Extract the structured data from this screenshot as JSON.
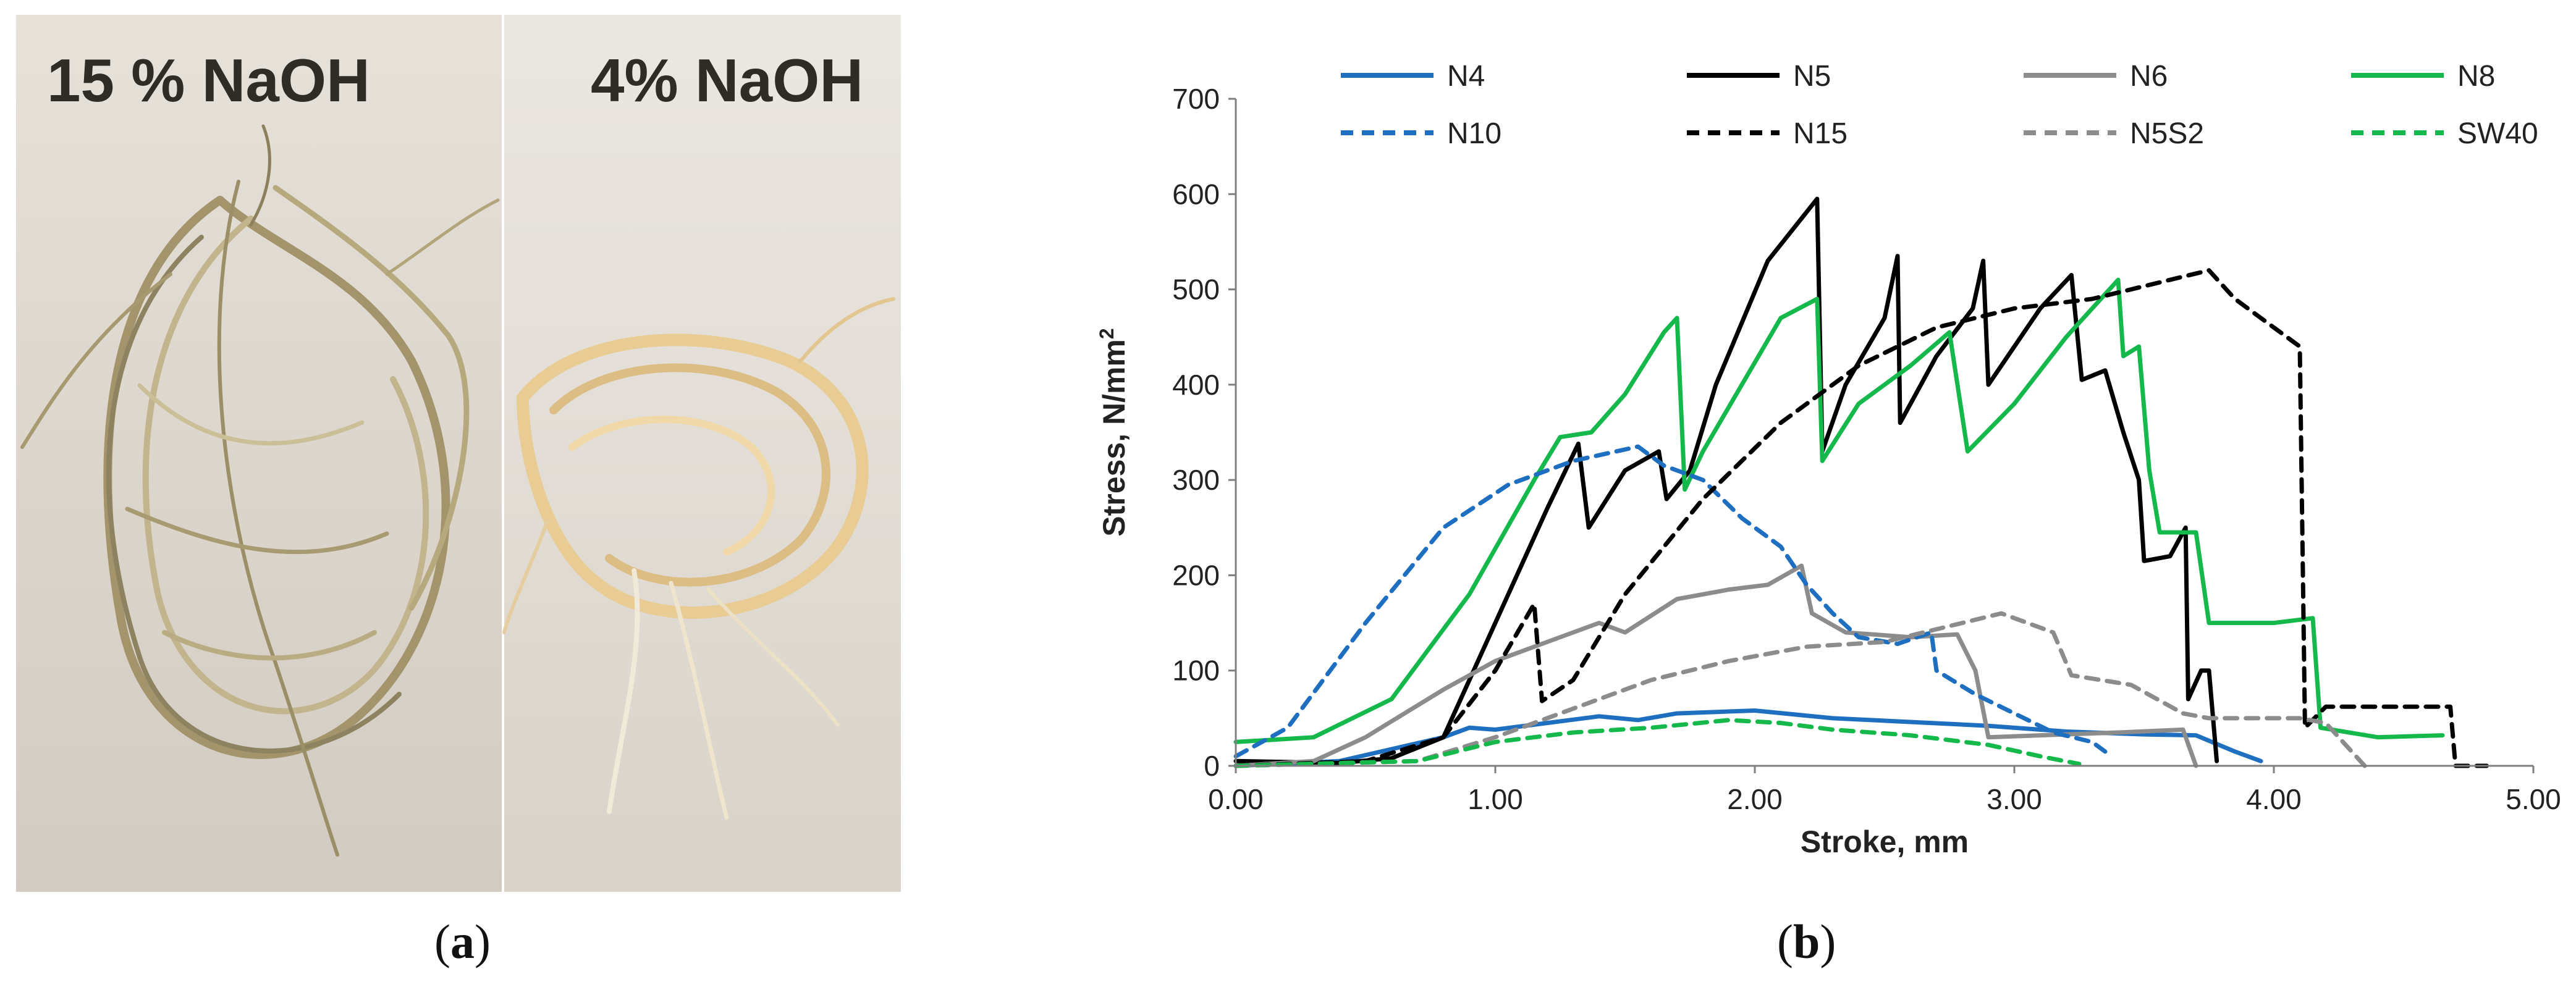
{
  "panel_a": {
    "label_left": "15 % NaOH",
    "label_right": "4% NaOH",
    "caption_prefix": "(",
    "caption_letter": "a",
    "caption_suffix": ")"
  },
  "panel_b": {
    "caption_prefix": "(",
    "caption_letter": "b",
    "caption_suffix": ")"
  },
  "colors": {
    "blue": "#1f6fc0",
    "black": "#000000",
    "gray": "#8c8c8c",
    "green": "#14b84b"
  },
  "chart_data": {
    "type": "line",
    "title": "",
    "xlabel": "Stroke, mm",
    "ylabel": "Stress, N/mm",
    "ylabel_superscript": "2",
    "xlim": [
      0,
      5
    ],
    "ylim": [
      0,
      700
    ],
    "x_ticks": [
      0,
      1,
      2,
      3,
      4,
      5
    ],
    "x_tick_labels": [
      "0.00",
      "1.00",
      "2.00",
      "3.00",
      "4.00",
      "5.00"
    ],
    "y_ticks": [
      0,
      100,
      200,
      300,
      400,
      500,
      600,
      700
    ],
    "y_tick_labels": [
      "0",
      "100",
      "200",
      "300",
      "400",
      "500",
      "600",
      "700"
    ],
    "grid": false,
    "legend": "top",
    "series": [
      {
        "name": "N4",
        "color": "#1f6fc0",
        "dash": false,
        "points": [
          [
            0,
            0
          ],
          [
            0.4,
            5
          ],
          [
            0.8,
            30
          ],
          [
            0.9,
            40
          ],
          [
            1.0,
            38
          ],
          [
            1.2,
            45
          ],
          [
            1.4,
            52
          ],
          [
            1.55,
            48
          ],
          [
            1.7,
            55
          ],
          [
            2.0,
            58
          ],
          [
            2.3,
            50
          ],
          [
            2.6,
            46
          ],
          [
            2.9,
            42
          ],
          [
            3.2,
            36
          ],
          [
            3.5,
            33
          ],
          [
            3.7,
            32
          ],
          [
            3.85,
            15
          ],
          [
            3.95,
            5
          ]
        ]
      },
      {
        "name": "N5",
        "color": "#000000",
        "dash": false,
        "points": [
          [
            0,
            5
          ],
          [
            0.4,
            3
          ],
          [
            0.6,
            8
          ],
          [
            0.8,
            30
          ],
          [
            1.0,
            150
          ],
          [
            1.2,
            270
          ],
          [
            1.32,
            338
          ],
          [
            1.36,
            250
          ],
          [
            1.5,
            310
          ],
          [
            1.63,
            330
          ],
          [
            1.66,
            280
          ],
          [
            1.75,
            310
          ],
          [
            1.85,
            400
          ],
          [
            2.05,
            530
          ],
          [
            2.24,
            595
          ],
          [
            2.26,
            330
          ],
          [
            2.35,
            400
          ],
          [
            2.5,
            470
          ],
          [
            2.55,
            535
          ],
          [
            2.56,
            360
          ],
          [
            2.7,
            430
          ],
          [
            2.84,
            480
          ],
          [
            2.88,
            530
          ],
          [
            2.9,
            400
          ],
          [
            3.0,
            440
          ],
          [
            3.1,
            480
          ],
          [
            3.22,
            515
          ],
          [
            3.26,
            405
          ],
          [
            3.35,
            415
          ],
          [
            3.42,
            350
          ],
          [
            3.48,
            300
          ],
          [
            3.5,
            215
          ],
          [
            3.6,
            220
          ],
          [
            3.66,
            250
          ],
          [
            3.67,
            70
          ],
          [
            3.72,
            100
          ],
          [
            3.75,
            100
          ],
          [
            3.78,
            5
          ]
        ]
      },
      {
        "name": "N6",
        "color": "#8c8c8c",
        "dash": false,
        "points": [
          [
            0,
            0
          ],
          [
            0.3,
            5
          ],
          [
            0.5,
            30
          ],
          [
            0.8,
            80
          ],
          [
            1.0,
            110
          ],
          [
            1.2,
            130
          ],
          [
            1.4,
            150
          ],
          [
            1.5,
            140
          ],
          [
            1.7,
            175
          ],
          [
            1.9,
            185
          ],
          [
            2.05,
            190
          ],
          [
            2.18,
            210
          ],
          [
            2.22,
            160
          ],
          [
            2.35,
            140
          ],
          [
            2.6,
            135
          ],
          [
            2.78,
            138
          ],
          [
            2.85,
            100
          ],
          [
            2.9,
            30
          ],
          [
            3.1,
            32
          ],
          [
            3.4,
            35
          ],
          [
            3.65,
            38
          ],
          [
            3.7,
            0
          ]
        ]
      },
      {
        "name": "N8",
        "color": "#14b84b",
        "dash": false,
        "points": [
          [
            0,
            25
          ],
          [
            0.3,
            30
          ],
          [
            0.6,
            70
          ],
          [
            0.9,
            180
          ],
          [
            1.15,
            300
          ],
          [
            1.25,
            345
          ],
          [
            1.37,
            350
          ],
          [
            1.5,
            390
          ],
          [
            1.65,
            455
          ],
          [
            1.7,
            470
          ],
          [
            1.73,
            290
          ],
          [
            1.8,
            330
          ],
          [
            1.95,
            400
          ],
          [
            2.1,
            470
          ],
          [
            2.24,
            490
          ],
          [
            2.26,
            320
          ],
          [
            2.4,
            380
          ],
          [
            2.6,
            420
          ],
          [
            2.75,
            455
          ],
          [
            2.82,
            330
          ],
          [
            3.0,
            380
          ],
          [
            3.2,
            450
          ],
          [
            3.4,
            510
          ],
          [
            3.42,
            430
          ],
          [
            3.48,
            440
          ],
          [
            3.52,
            310
          ],
          [
            3.56,
            245
          ],
          [
            3.7,
            245
          ],
          [
            3.75,
            150
          ],
          [
            4.0,
            150
          ],
          [
            4.15,
            155
          ],
          [
            4.18,
            40
          ],
          [
            4.4,
            30
          ],
          [
            4.65,
            32
          ]
        ]
      },
      {
        "name": "N10",
        "color": "#1f6fc0",
        "dash": true,
        "points": [
          [
            0,
            10
          ],
          [
            0.2,
            40
          ],
          [
            0.5,
            150
          ],
          [
            0.8,
            250
          ],
          [
            1.05,
            295
          ],
          [
            1.3,
            320
          ],
          [
            1.55,
            335
          ],
          [
            1.65,
            315
          ],
          [
            1.8,
            300
          ],
          [
            1.95,
            260
          ],
          [
            2.1,
            230
          ],
          [
            2.2,
            190
          ],
          [
            2.3,
            160
          ],
          [
            2.4,
            135
          ],
          [
            2.55,
            128
          ],
          [
            2.68,
            140
          ],
          [
            2.7,
            100
          ],
          [
            2.85,
            75
          ],
          [
            3.0,
            55
          ],
          [
            3.15,
            35
          ],
          [
            3.3,
            25
          ],
          [
            3.35,
            15
          ]
        ]
      },
      {
        "name": "N15",
        "color": "#000000",
        "dash": true,
        "points": [
          [
            0,
            0
          ],
          [
            0.5,
            5
          ],
          [
            0.8,
            30
          ],
          [
            1.0,
            100
          ],
          [
            1.15,
            170
          ],
          [
            1.18,
            68
          ],
          [
            1.3,
            90
          ],
          [
            1.5,
            180
          ],
          [
            1.8,
            280
          ],
          [
            2.1,
            360
          ],
          [
            2.4,
            420
          ],
          [
            2.7,
            460
          ],
          [
            3.0,
            480
          ],
          [
            3.3,
            490
          ],
          [
            3.6,
            510
          ],
          [
            3.75,
            520
          ],
          [
            3.85,
            490
          ],
          [
            3.95,
            470
          ],
          [
            4.1,
            440
          ],
          [
            4.12,
            40
          ],
          [
            4.2,
            62
          ],
          [
            4.5,
            62
          ],
          [
            4.68,
            62
          ],
          [
            4.7,
            0
          ],
          [
            4.82,
            0
          ]
        ]
      },
      {
        "name": "N5S2",
        "color": "#8c8c8c",
        "dash": true,
        "points": [
          [
            0,
            0
          ],
          [
            0.7,
            5
          ],
          [
            1.0,
            30
          ],
          [
            1.3,
            60
          ],
          [
            1.6,
            90
          ],
          [
            1.9,
            110
          ],
          [
            2.2,
            125
          ],
          [
            2.5,
            130
          ],
          [
            2.8,
            150
          ],
          [
            2.95,
            160
          ],
          [
            3.15,
            140
          ],
          [
            3.22,
            95
          ],
          [
            3.45,
            85
          ],
          [
            3.55,
            70
          ],
          [
            3.65,
            55
          ],
          [
            3.75,
            50
          ],
          [
            4.1,
            50
          ],
          [
            4.2,
            45
          ],
          [
            4.3,
            15
          ],
          [
            4.35,
            0
          ]
        ]
      },
      {
        "name": "SW40",
        "color": "#14b84b",
        "dash": true,
        "points": [
          [
            0,
            0
          ],
          [
            0.7,
            5
          ],
          [
            1.0,
            25
          ],
          [
            1.3,
            35
          ],
          [
            1.6,
            40
          ],
          [
            1.9,
            48
          ],
          [
            2.1,
            45
          ],
          [
            2.3,
            38
          ],
          [
            2.6,
            32
          ],
          [
            2.9,
            22
          ],
          [
            3.1,
            10
          ],
          [
            3.25,
            2
          ]
        ]
      }
    ]
  }
}
